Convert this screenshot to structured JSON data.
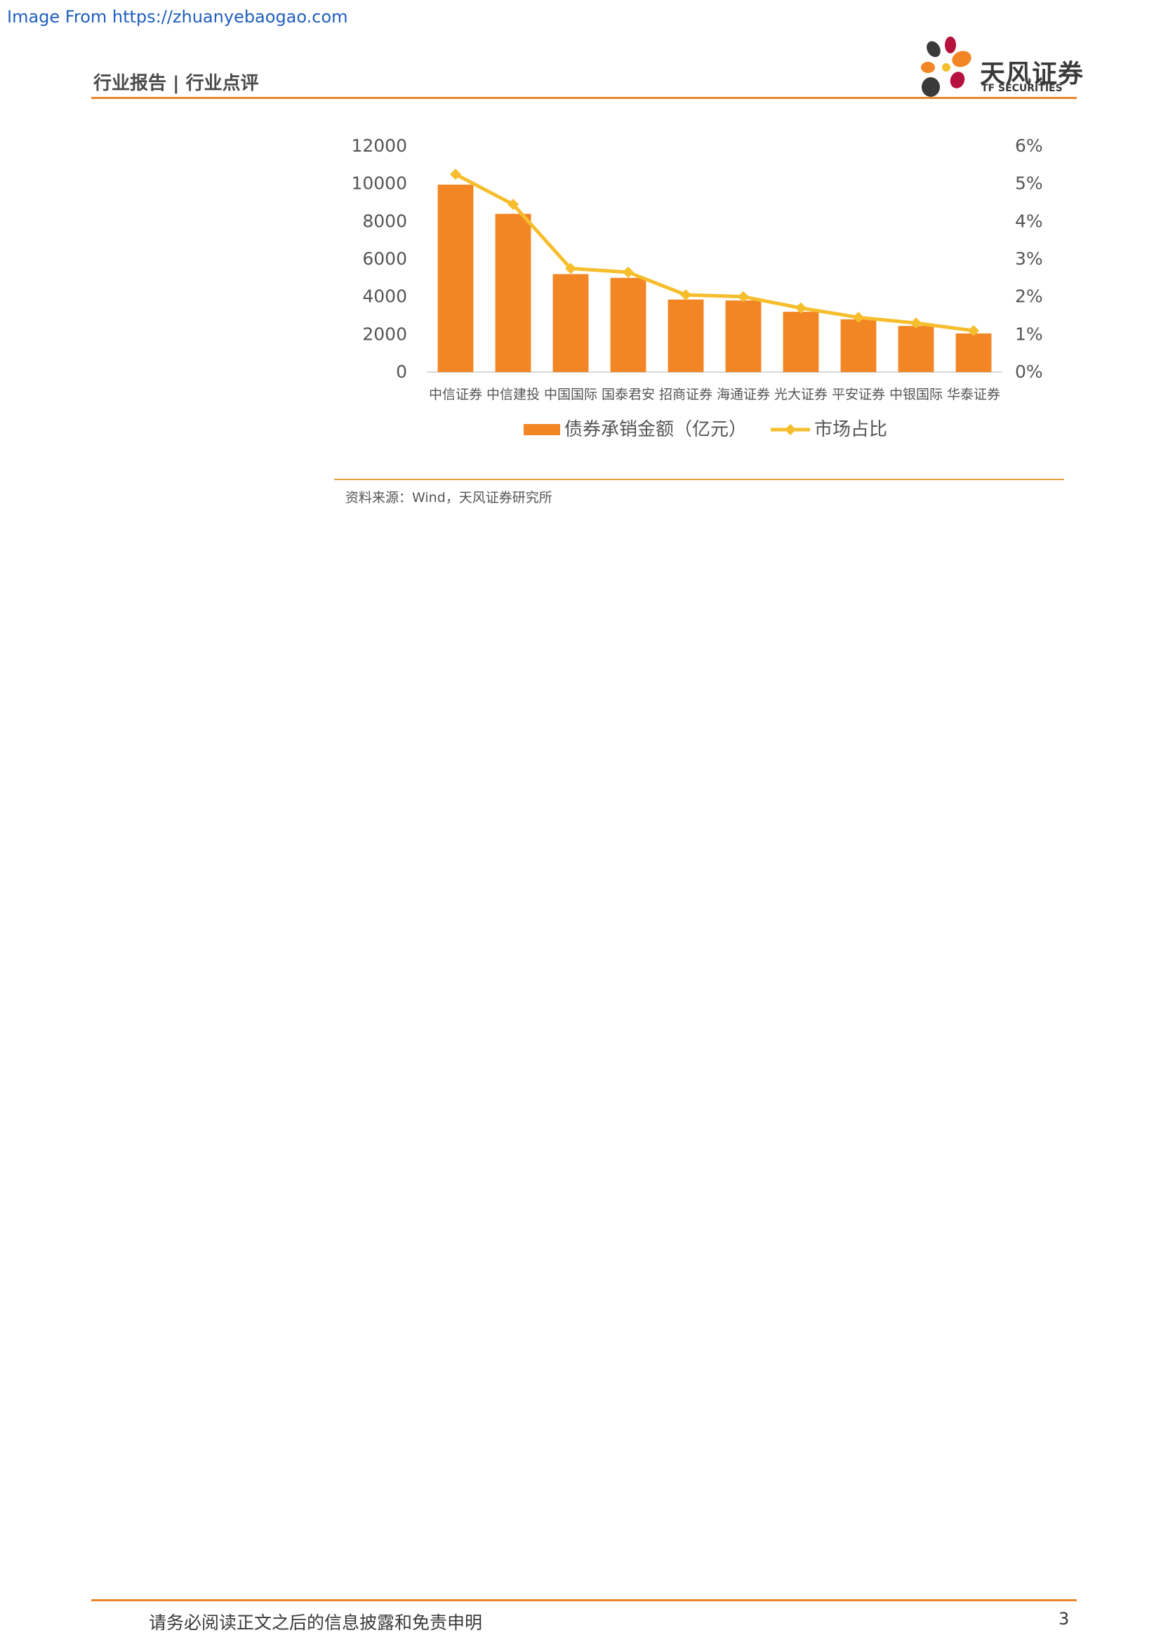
{
  "watermark": "Image From https://zhuanyebaogao.com",
  "header": {
    "label": "行业报告 | 行业点评",
    "brand_cn": "天风证券",
    "brand_en": "TF SECURITIES"
  },
  "chart_data": {
    "type": "bar",
    "title": "",
    "categories": [
      "中信证券",
      "中信建投",
      "中国国际",
      "国泰君安",
      "招商证券",
      "海通证券",
      "光大证券",
      "平安证券",
      "中银国际",
      "华泰证券"
    ],
    "series": [
      {
        "name": "债券承销金额（亿元）",
        "type": "bar",
        "axis": "left",
        "color": "#f28524",
        "values": [
          9950,
          8400,
          5200,
          5000,
          3850,
          3800,
          3200,
          2800,
          2450,
          2050
        ]
      },
      {
        "name": "市场占比",
        "type": "line",
        "axis": "right",
        "color": "#f6be2c",
        "values": [
          5.25,
          4.45,
          2.75,
          2.65,
          2.05,
          2.0,
          1.7,
          1.45,
          1.3,
          1.1
        ]
      }
    ],
    "y_left": {
      "min": 0,
      "max": 12000,
      "ticks": [
        "0",
        "2000",
        "4000",
        "6000",
        "8000",
        "10000",
        "12000"
      ]
    },
    "y_right": {
      "min": 0,
      "max": 6,
      "ticks": [
        "0%",
        "1%",
        "2%",
        "3%",
        "4%",
        "5%",
        "6%"
      ]
    },
    "grid": false,
    "legend_position": "bottom"
  },
  "source": "资料来源：Wind，天风证券研究所",
  "footer": {
    "disclaimer": "请务必阅读正文之后的信息披露和免责申明",
    "page_number": "3"
  }
}
